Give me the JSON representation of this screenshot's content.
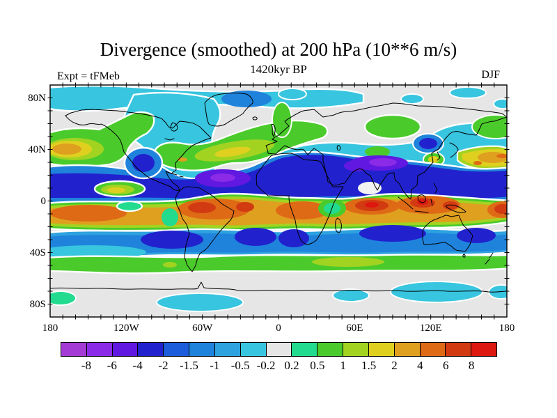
{
  "title": "Divergence (smoothed) at 200 hPa (10**6 m/s)",
  "subtitle": "1420kyr BP",
  "experiment_label": "Expt = tFMeb",
  "season_label": "DJF",
  "axes": {
    "lat_ticks": [
      {
        "label": "80N",
        "value": 80
      },
      {
        "label": "40N",
        "value": 40
      },
      {
        "label": "0",
        "value": 0
      },
      {
        "label": "40S",
        "value": -40
      },
      {
        "label": "80S",
        "value": -80
      }
    ],
    "lon_ticks": [
      {
        "label": "180",
        "value": -180
      },
      {
        "label": "120W",
        "value": -120
      },
      {
        "label": "60W",
        "value": -60
      },
      {
        "label": "0",
        "value": 0
      },
      {
        "label": "60E",
        "value": 60
      },
      {
        "label": "120E",
        "value": 120
      },
      {
        "label": "180",
        "value": 180
      }
    ]
  },
  "colorbar": {
    "levels": [
      "-8",
      "-6",
      "-4",
      "-2",
      "-1.5",
      "-1",
      "-0.5",
      "-0.2",
      "0.2",
      "0.5",
      "1",
      "1.5",
      "2",
      "4",
      "6",
      "8"
    ],
    "colors": [
      "#A43BD4",
      "#8B2BE8",
      "#6118E0",
      "#2122CE",
      "#1D5CDB",
      "#1F83DC",
      "#2EA2DF",
      "#38C5DF",
      "#E6E6E6",
      "#23DB8E",
      "#4ACB2B",
      "#A3D321",
      "#DFD020",
      "#DF9F1F",
      "#DE6A16",
      "#D23A12",
      "#DD1810"
    ]
  },
  "chart_data": {
    "type": "heatmap",
    "subtype": "filled_contour_world_map",
    "title": "Divergence (smoothed) at 200 hPa (10**6 m/s)",
    "time_label": "1420kyr BP",
    "experiment": "tFMeb",
    "season": "DJF",
    "units": "10**6 m/s",
    "projection": "equirectangular",
    "lon_range": [
      -180,
      180
    ],
    "lat_range": [
      -90,
      90
    ],
    "xlabel_ticks": [
      "180",
      "120W",
      "60W",
      "0",
      "60E",
      "120E",
      "180"
    ],
    "ylabel_ticks": [
      "80N",
      "40N",
      "0",
      "40S",
      "80S"
    ],
    "contour_levels": [
      -8,
      -6,
      -4,
      -2,
      -1.5,
      -1,
      -0.5,
      -0.2,
      0.2,
      0.5,
      1,
      1.5,
      2,
      4,
      6,
      8
    ],
    "palette": [
      "#A43BD4",
      "#8B2BE8",
      "#6118E0",
      "#2122CE",
      "#1D5CDB",
      "#1F83DC",
      "#2EA2DF",
      "#38C5DF",
      "#E6E6E6",
      "#23DB8E",
      "#4ACB2B",
      "#A3D321",
      "#DFD020",
      "#DF9F1F",
      "#DE6A16",
      "#D23A12",
      "#DD1810"
    ],
    "legend_position": "bottom",
    "grid": false,
    "features": [
      {
        "region": "tropics 0-15S circumglobal (E Pacific, Amazonia, central/south Africa, Indian Ocean, Maritime Continent, N Australia)",
        "value_range": "2 to >8",
        "sign": "strong divergence (orange/red cores)"
      },
      {
        "region": "5N-30N band from Caribbean across Sahara, Arabia, N India to W Pacific",
        "value_range": "-2 to -8",
        "sign": "strong convergence (dark blue with purple cores near 60W 18N and 60-95E 27N)"
      },
      {
        "region": "subtropics 15S-35S (S Pacific, S Atlantic, S Indian Ocean, Australia)",
        "value_range": "-1 to -4",
        "sign": "convergence (blue band with dark cores)"
      },
      {
        "region": "40S-55S circumglobal",
        "value_range": "0.5 to 1.5",
        "sign": "divergence (green band, yellow-green core near 30-60E)"
      },
      {
        "region": "N Pacific 30-40N west and N Atlantic 30-50N",
        "value_range": "1 to 4",
        "sign": "divergence maxima (yellow/orange cores)"
      },
      {
        "region": "Japan / NW Pacific 30-40N",
        "value_range": "2 to 8",
        "sign": "divergence band"
      },
      {
        "region": "E Pacific ~120W 10N and SE US coast",
        "value_range": "1 to 2",
        "sign": "local divergence (yellow blobs ringed white)"
      },
      {
        "region": "high latitudes 55-70N and 55-70S",
        "value_range": "-0.2 to 0.2",
        "sign": "near zero (gray)"
      },
      {
        "region": "Arctic 70-90N (western hemisphere) and Antarctic coastal patches",
        "value_range": "-0.5 to -0.2",
        "sign": "weak convergence (cyan)"
      }
    ]
  }
}
